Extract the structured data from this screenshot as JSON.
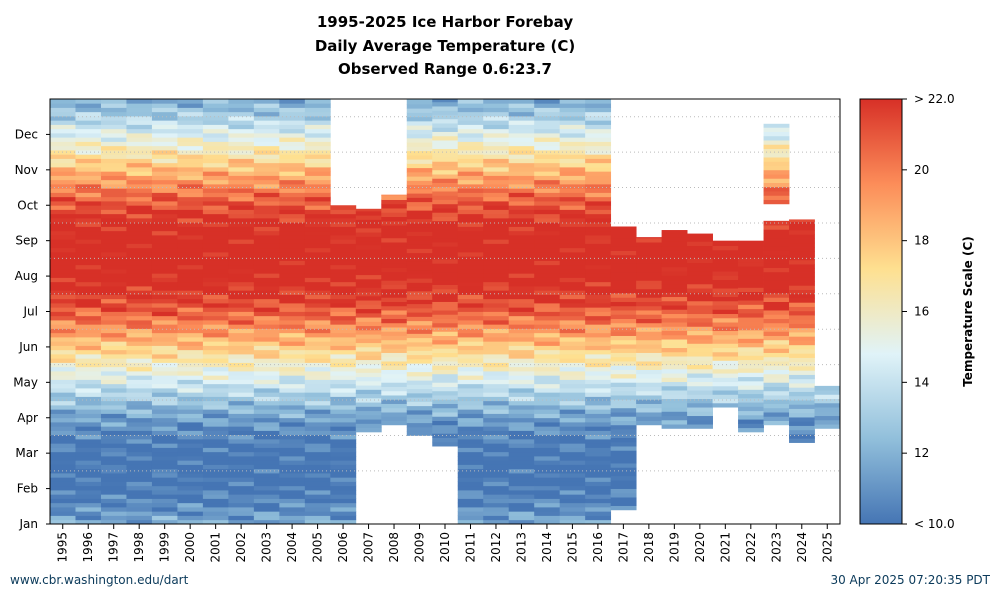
{
  "title_lines": [
    "1995-2025 Ice Harbor Forebay",
    "Daily Average Temperature (C)",
    "Observed Range 0.6:23.7"
  ],
  "footer": {
    "left": "www.cbr.washington.edu/dart",
    "right": "30 Apr 2025 07:20:35 PDT"
  },
  "chart_data": {
    "type": "heatmap",
    "title": "1995-2025 Ice Harbor Forebay Daily Average Temperature (C)",
    "subtitle": "Observed Range 0.6:23.7",
    "x_categories": [
      "1995",
      "1996",
      "1997",
      "1998",
      "1999",
      "2000",
      "2001",
      "2002",
      "2003",
      "2004",
      "2005",
      "2006",
      "2007",
      "2008",
      "2009",
      "2010",
      "2011",
      "2012",
      "2013",
      "2014",
      "2015",
      "2016",
      "2017",
      "2018",
      "2019",
      "2020",
      "2021",
      "2022",
      "2023",
      "2024",
      "2025"
    ],
    "y_ticks": [
      "Jan",
      "Feb",
      "Mar",
      "Apr",
      "May",
      "Jun",
      "Jul",
      "Aug",
      "Sep",
      "Oct",
      "Nov",
      "Dec"
    ],
    "colorbar": {
      "label": "Temperature Scale (C)",
      "min": 10,
      "max": 22,
      "ticks": [
        "< 10.0",
        "12",
        "14",
        "16",
        "18",
        "20",
        "> 22.0"
      ],
      "colors": [
        "#4575b4",
        "#91bfdb",
        "#e0f3f8",
        "#fee090",
        "#fc8d59",
        "#d73027"
      ]
    },
    "coverage_months": [
      {
        "year": "1995",
        "start": 0.0,
        "end": 12.0
      },
      {
        "year": "1996",
        "start": 0.0,
        "end": 12.0
      },
      {
        "year": "1997",
        "start": 0.0,
        "end": 12.0
      },
      {
        "year": "1998",
        "start": 0.0,
        "end": 12.0
      },
      {
        "year": "1999",
        "start": 0.0,
        "end": 12.0
      },
      {
        "year": "2000",
        "start": 0.0,
        "end": 12.0
      },
      {
        "year": "2001",
        "start": 0.0,
        "end": 12.0
      },
      {
        "year": "2002",
        "start": 0.0,
        "end": 12.0
      },
      {
        "year": "2003",
        "start": 0.0,
        "end": 12.0
      },
      {
        "year": "2004",
        "start": 0.0,
        "end": 12.0
      },
      {
        "year": "2005",
        "start": 0.0,
        "end": 12.0
      },
      {
        "year": "2006",
        "start": 0.0,
        "end": 9.0
      },
      {
        "year": "2007",
        "start": 2.6,
        "end": 8.9
      },
      {
        "year": "2008",
        "start": 2.8,
        "end": 9.3
      },
      {
        "year": "2009",
        "start": 2.5,
        "end": 12.0
      },
      {
        "year": "2010",
        "start": 2.2,
        "end": 12.0
      },
      {
        "year": "2011",
        "start": 0.0,
        "end": 12.0
      },
      {
        "year": "2012",
        "start": 0.0,
        "end": 12.0
      },
      {
        "year": "2013",
        "start": 0.0,
        "end": 12.0
      },
      {
        "year": "2014",
        "start": 0.0,
        "end": 12.0
      },
      {
        "year": "2015",
        "start": 0.0,
        "end": 12.0
      },
      {
        "year": "2016",
        "start": 0.0,
        "end": 12.0
      },
      {
        "year": "2017",
        "start": 0.4,
        "end": 8.4
      },
      {
        "year": "2018",
        "start": 2.8,
        "end": 8.1
      },
      {
        "year": "2019",
        "start": 2.7,
        "end": 8.3
      },
      {
        "year": "2020",
        "start": 2.7,
        "end": 8.2
      },
      {
        "year": "2021",
        "start": 3.3,
        "end": 8.0
      },
      {
        "year": "2022",
        "start": 2.6,
        "end": 8.0
      },
      {
        "year": "2023",
        "start": 2.8,
        "end": 11.3
      },
      {
        "year": "2024",
        "start": 2.3,
        "end": 8.6
      },
      {
        "year": "2025",
        "start": 2.7,
        "end": 3.9
      }
    ],
    "missing_gaps_months": [
      {
        "year": "2023",
        "start": 8.5,
        "end": 9.0
      }
    ],
    "peak_temperature_month": {
      "value": 7.3,
      "note": "warmest period Jul-Sep"
    }
  }
}
